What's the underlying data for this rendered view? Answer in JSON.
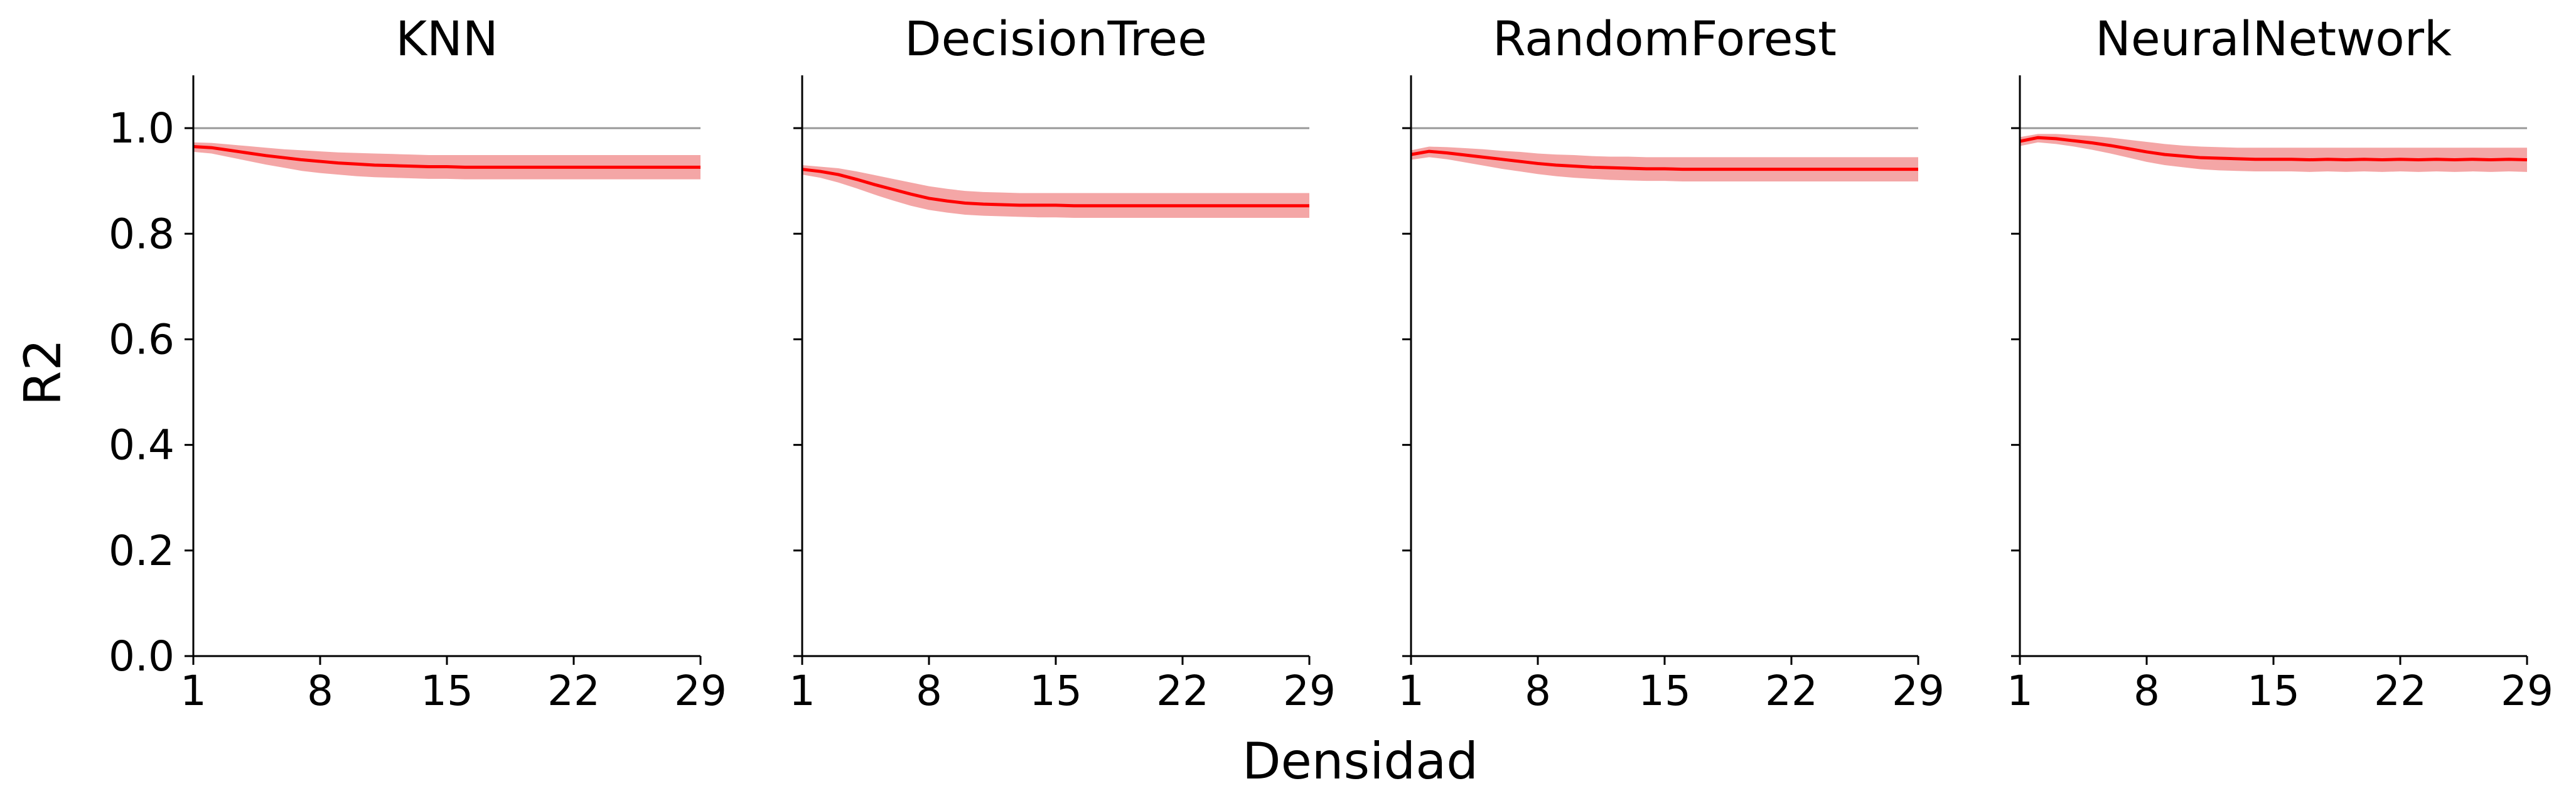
{
  "figure": {
    "xlabel": "Densidad",
    "ylabel": "R2"
  },
  "colors": {
    "line": "#ff0000",
    "band": "#f4a6a6",
    "reference_line": "#999999",
    "axis": "#000000"
  },
  "chart_data": [
    {
      "type": "line",
      "title": "KNN",
      "x": [
        1,
        2,
        3,
        4,
        5,
        6,
        7,
        8,
        9,
        10,
        11,
        12,
        13,
        14,
        15,
        16,
        17,
        18,
        19,
        20,
        21,
        22,
        23,
        24,
        25,
        26,
        27,
        28,
        29
      ],
      "series": [
        {
          "values": [
            0.965,
            0.963,
            0.958,
            0.953,
            0.948,
            0.944,
            0.94,
            0.937,
            0.934,
            0.932,
            0.93,
            0.929,
            0.928,
            0.927,
            0.927,
            0.926,
            0.926,
            0.926,
            0.926,
            0.926,
            0.926,
            0.926,
            0.926,
            0.926,
            0.926,
            0.926,
            0.926,
            0.926,
            0.926
          ],
          "lower": [
            0.955,
            0.952,
            0.945,
            0.938,
            0.931,
            0.925,
            0.919,
            0.915,
            0.912,
            0.909,
            0.907,
            0.906,
            0.905,
            0.904,
            0.904,
            0.903,
            0.903,
            0.903,
            0.903,
            0.903,
            0.903,
            0.903,
            0.903,
            0.903,
            0.903,
            0.903,
            0.903,
            0.903,
            0.903
          ],
          "upper": [
            0.973,
            0.972,
            0.969,
            0.966,
            0.963,
            0.96,
            0.958,
            0.956,
            0.954,
            0.953,
            0.952,
            0.951,
            0.95,
            0.949,
            0.949,
            0.949,
            0.949,
            0.949,
            0.949,
            0.949,
            0.949,
            0.949,
            0.949,
            0.949,
            0.949,
            0.949,
            0.949,
            0.949,
            0.949
          ]
        }
      ],
      "reference_y": 1.0,
      "xticks": [
        1,
        8,
        15,
        22,
        29
      ],
      "yticks": [
        "0.0",
        "0.2",
        "0.4",
        "0.6",
        "0.8",
        "1.0"
      ],
      "xlim": [
        1,
        29
      ],
      "ylim": [
        0,
        1.1
      ],
      "grid": false
    },
    {
      "type": "line",
      "title": "DecisionTree",
      "x": [
        1,
        2,
        3,
        4,
        5,
        6,
        7,
        8,
        9,
        10,
        11,
        12,
        13,
        14,
        15,
        16,
        17,
        18,
        19,
        20,
        21,
        22,
        23,
        24,
        25,
        26,
        27,
        28,
        29
      ],
      "series": [
        {
          "values": [
            0.922,
            0.918,
            0.912,
            0.903,
            0.893,
            0.884,
            0.875,
            0.867,
            0.862,
            0.858,
            0.856,
            0.855,
            0.854,
            0.854,
            0.854,
            0.853,
            0.853,
            0.853,
            0.853,
            0.853,
            0.853,
            0.853,
            0.853,
            0.853,
            0.853,
            0.853,
            0.853,
            0.853,
            0.853
          ],
          "lower": [
            0.912,
            0.906,
            0.897,
            0.886,
            0.874,
            0.863,
            0.853,
            0.845,
            0.84,
            0.836,
            0.834,
            0.833,
            0.832,
            0.831,
            0.831,
            0.83,
            0.83,
            0.83,
            0.83,
            0.83,
            0.83,
            0.83,
            0.83,
            0.83,
            0.83,
            0.83,
            0.83,
            0.83,
            0.83
          ],
          "upper": [
            0.93,
            0.927,
            0.924,
            0.918,
            0.911,
            0.904,
            0.897,
            0.89,
            0.885,
            0.881,
            0.879,
            0.878,
            0.877,
            0.877,
            0.877,
            0.877,
            0.877,
            0.877,
            0.877,
            0.877,
            0.877,
            0.877,
            0.877,
            0.877,
            0.877,
            0.877,
            0.877,
            0.877,
            0.877
          ]
        }
      ],
      "reference_y": 1.0,
      "xticks": [
        1,
        8,
        15,
        22,
        29
      ],
      "yticks": [
        "0.0",
        "0.2",
        "0.4",
        "0.6",
        "0.8",
        "1.0"
      ],
      "xlim": [
        1,
        29
      ],
      "ylim": [
        0,
        1.1
      ],
      "grid": false
    },
    {
      "type": "line",
      "title": "RandomForest",
      "x": [
        1,
        2,
        3,
        4,
        5,
        6,
        7,
        8,
        9,
        10,
        11,
        12,
        13,
        14,
        15,
        16,
        17,
        18,
        19,
        20,
        21,
        22,
        23,
        24,
        25,
        26,
        27,
        28,
        29
      ],
      "series": [
        {
          "values": [
            0.95,
            0.956,
            0.953,
            0.949,
            0.945,
            0.941,
            0.937,
            0.933,
            0.93,
            0.928,
            0.926,
            0.925,
            0.924,
            0.923,
            0.923,
            0.922,
            0.922,
            0.922,
            0.922,
            0.922,
            0.922,
            0.922,
            0.922,
            0.922,
            0.922,
            0.922,
            0.922,
            0.922,
            0.922
          ],
          "lower": [
            0.94,
            0.945,
            0.941,
            0.935,
            0.929,
            0.923,
            0.918,
            0.913,
            0.909,
            0.906,
            0.904,
            0.902,
            0.901,
            0.9,
            0.9,
            0.899,
            0.899,
            0.899,
            0.899,
            0.899,
            0.899,
            0.899,
            0.899,
            0.899,
            0.899,
            0.899,
            0.899,
            0.899,
            0.899
          ],
          "upper": [
            0.958,
            0.965,
            0.964,
            0.962,
            0.96,
            0.957,
            0.955,
            0.952,
            0.95,
            0.949,
            0.947,
            0.946,
            0.946,
            0.945,
            0.945,
            0.945,
            0.945,
            0.945,
            0.945,
            0.945,
            0.945,
            0.945,
            0.945,
            0.945,
            0.945,
            0.945,
            0.945,
            0.945,
            0.945
          ]
        }
      ],
      "reference_y": 1.0,
      "xticks": [
        1,
        8,
        15,
        22,
        29
      ],
      "yticks": [
        "0.0",
        "0.2",
        "0.4",
        "0.6",
        "0.8",
        "1.0"
      ],
      "xlim": [
        1,
        29
      ],
      "ylim": [
        0,
        1.1
      ],
      "grid": false
    },
    {
      "type": "line",
      "title": "NeuralNetwork",
      "x": [
        1,
        2,
        3,
        4,
        5,
        6,
        7,
        8,
        9,
        10,
        11,
        12,
        13,
        14,
        15,
        16,
        17,
        18,
        19,
        20,
        21,
        22,
        23,
        24,
        25,
        26,
        27,
        28,
        29
      ],
      "series": [
        {
          "values": [
            0.975,
            0.982,
            0.98,
            0.976,
            0.972,
            0.967,
            0.961,
            0.955,
            0.95,
            0.947,
            0.944,
            0.943,
            0.942,
            0.941,
            0.941,
            0.941,
            0.94,
            0.941,
            0.94,
            0.941,
            0.94,
            0.941,
            0.94,
            0.941,
            0.94,
            0.941,
            0.94,
            0.941,
            0.94
          ],
          "lower": [
            0.966,
            0.973,
            0.97,
            0.965,
            0.959,
            0.952,
            0.944,
            0.936,
            0.93,
            0.926,
            0.922,
            0.92,
            0.919,
            0.918,
            0.918,
            0.918,
            0.917,
            0.918,
            0.917,
            0.918,
            0.917,
            0.918,
            0.917,
            0.918,
            0.917,
            0.918,
            0.917,
            0.918,
            0.917
          ],
          "upper": [
            0.983,
            0.989,
            0.989,
            0.987,
            0.985,
            0.982,
            0.978,
            0.974,
            0.97,
            0.967,
            0.965,
            0.964,
            0.963,
            0.963,
            0.963,
            0.963,
            0.963,
            0.963,
            0.963,
            0.963,
            0.963,
            0.963,
            0.963,
            0.963,
            0.963,
            0.963,
            0.963,
            0.963,
            0.963
          ]
        }
      ],
      "reference_y": 1.0,
      "xticks": [
        1,
        8,
        15,
        22,
        29
      ],
      "yticks": [
        "0.0",
        "0.2",
        "0.4",
        "0.6",
        "0.8",
        "1.0"
      ],
      "xlim": [
        1,
        29
      ],
      "ylim": [
        0,
        1.1
      ],
      "grid": false
    }
  ]
}
